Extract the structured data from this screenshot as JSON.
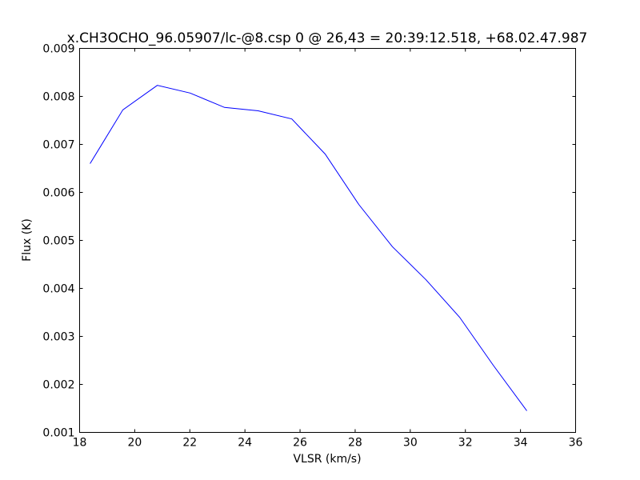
{
  "chart_data": {
    "type": "line",
    "title": "x.CH3OCHO_96.05907/lc-@8.csp 0 @ 26,43 = 20:39:12.518, +68.02.47.987",
    "x_label": "VLSR (km/s)",
    "y_label": "Flux (K)",
    "x": [
      18.38,
      19.57,
      20.82,
      22.01,
      23.26,
      24.48,
      25.7,
      26.91,
      28.13,
      29.35,
      30.57,
      31.79,
      33.01,
      34.23
    ],
    "series": [
      {
        "color": "#0000ff",
        "values": [
          0.0066,
          0.00772,
          0.00823,
          0.00807,
          0.00777,
          0.0077,
          0.00753,
          0.0068,
          0.00575,
          0.00487,
          0.00418,
          0.0034,
          0.0024,
          0.00145
        ]
      }
    ],
    "xlim": [
      18,
      36
    ],
    "xticks": [
      18,
      20,
      22,
      24,
      26,
      28,
      30,
      32,
      34,
      36
    ],
    "ylim": [
      0.001,
      0.009
    ],
    "yticks": [
      0.001,
      0.002,
      0.003,
      0.004,
      0.005,
      0.006,
      0.007,
      0.008,
      0.009
    ],
    "grid": false
  }
}
